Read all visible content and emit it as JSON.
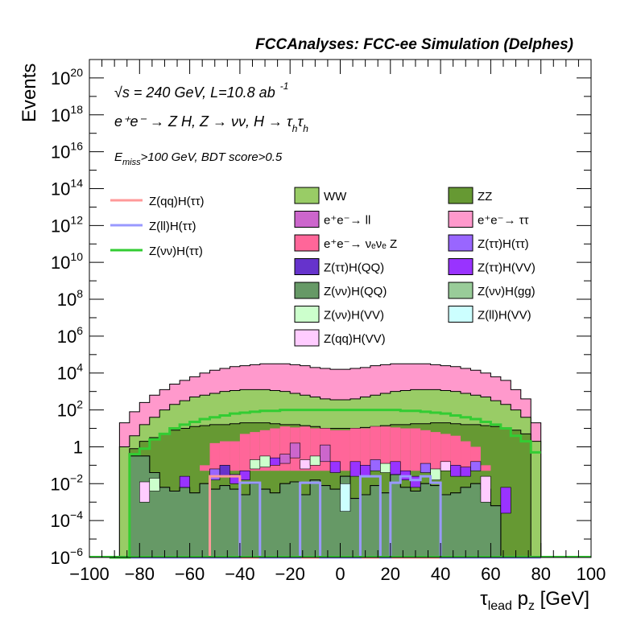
{
  "chart_data": {
    "type": "histogram",
    "title": "FCCAnalyses: FCC-ee Simulation (Delphes)",
    "xlabel_main": "τ",
    "xlabel_sub": "lead",
    "xlabel_rest": " p",
    "xlabel_sub2": "z",
    "xlabel_unit": " [GeV]",
    "ylabel": "Events",
    "y_scale": "log",
    "xlim": [
      -100,
      100
    ],
    "ylim_exp": [
      -6,
      21
    ],
    "x_ticks": [
      "−100",
      "−80",
      "−60",
      "−40",
      "−20",
      "0",
      "20",
      "40",
      "60",
      "80",
      "100"
    ],
    "x_tick_values": [
      -100,
      -80,
      -60,
      -40,
      -20,
      0,
      20,
      40,
      60,
      80,
      100
    ],
    "y_ticks": [
      {
        "exp": -6,
        "base": "10",
        "sup": "−6"
      },
      {
        "exp": -4,
        "base": "10",
        "sup": "−4"
      },
      {
        "exp": -2,
        "base": "10",
        "sup": "−2"
      },
      {
        "exp": 0,
        "base": "1",
        "sup": ""
      },
      {
        "exp": 2,
        "base": "10",
        "sup": "2"
      },
      {
        "exp": 4,
        "base": "10",
        "sup": "4"
      },
      {
        "exp": 6,
        "base": "10",
        "sup": "6"
      },
      {
        "exp": 8,
        "base": "10",
        "sup": "8"
      },
      {
        "exp": 10,
        "base": "10",
        "sup": "10"
      },
      {
        "exp": 12,
        "base": "10",
        "sup": "12"
      },
      {
        "exp": 14,
        "base": "10",
        "sup": "14"
      },
      {
        "exp": 16,
        "base": "10",
        "sup": "16"
      },
      {
        "exp": 18,
        "base": "10",
        "sup": "18"
      },
      {
        "exp": 20,
        "base": "10",
        "sup": "20"
      }
    ],
    "annotations": {
      "line1_sqrt": "√s",
      "line1_rest": " = 240 GeV, L=10.8 ab",
      "line1_sup": "-1",
      "line2": "e⁺e⁻ → Z H, Z → νν, H → τ",
      "line2_sub1": "h",
      "line2_tau2": "τ",
      "line2_sub2": "h",
      "line3_E": "E",
      "line3_sub": "miss",
      "line3_rest": ">100 GeV, BDT score>0.5"
    },
    "bin_edges": [
      -92,
      -88,
      -84,
      -80,
      -76,
      -72,
      -68,
      -64,
      -60,
      -56,
      -52,
      -48,
      -44,
      -40,
      -36,
      -32,
      -28,
      -24,
      -20,
      -16,
      -12,
      -8,
      -4,
      0,
      4,
      8,
      12,
      16,
      20,
      24,
      28,
      32,
      36,
      40,
      44,
      48,
      52,
      56,
      60,
      64,
      68,
      72,
      76,
      80
    ],
    "stack_log10": [
      {
        "name": "Z(νν)H(QQ)",
        "color": "#669966",
        "values": [
          -7,
          -7,
          -0.5,
          -0.5,
          -1.4,
          -2.2,
          -2.4,
          -2.2,
          -2.5,
          -2.0,
          -2.3,
          -2.1,
          -2.3,
          -2.6,
          -2.0,
          -2.3,
          -2.5,
          -2.0,
          -1.9,
          -2.6,
          -1.8,
          -2.1,
          -2.3,
          -1.6,
          -2.8,
          -2.6,
          -2.1,
          -2.5,
          -1.5,
          -2.2,
          -2.4,
          -2.0,
          -2.1,
          -2.6,
          -2.5,
          -2.2,
          -2.0,
          -2.3,
          -3.2,
          -7,
          -7,
          -7,
          -7
        ]
      },
      {
        "name": "ZZ",
        "color": "#669933",
        "values": [
          -7,
          -7,
          -0.1,
          0.3,
          0.5,
          0.7,
          0.9,
          1.0,
          1.1,
          1.15,
          1.2,
          1.2,
          1.25,
          1.3,
          1.3,
          1.3,
          1.25,
          1.2,
          1.2,
          1.15,
          1.1,
          1.0,
          1.0,
          1.0,
          1.0,
          1.05,
          1.1,
          1.15,
          1.2,
          1.2,
          1.25,
          1.25,
          1.3,
          1.3,
          1.25,
          1.2,
          1.2,
          1.15,
          1.1,
          1.0,
          0.9,
          0.7,
          -7
        ]
      },
      {
        "name": "WW",
        "color": "#99cc66",
        "values": [
          -7,
          0.0,
          0.6,
          1.2,
          1.6,
          2.0,
          2.3,
          2.5,
          2.7,
          2.8,
          2.9,
          3.0,
          3.05,
          3.1,
          3.1,
          3.1,
          3.05,
          3.0,
          2.9,
          2.8,
          2.7,
          2.6,
          2.55,
          2.55,
          2.6,
          2.7,
          2.8,
          2.9,
          3.0,
          3.05,
          3.1,
          3.1,
          3.1,
          3.05,
          3.0,
          2.9,
          2.8,
          2.7,
          2.5,
          2.3,
          2.0,
          1.6,
          0.3
        ]
      },
      {
        "name": "e⁺e⁻→ ττ",
        "color": "#ff99cc",
        "values": [
          -7,
          1.3,
          1.9,
          2.4,
          2.8,
          3.1,
          3.4,
          3.6,
          3.8,
          4.0,
          4.15,
          4.25,
          4.35,
          4.4,
          4.45,
          4.5,
          4.5,
          4.5,
          4.45,
          4.4,
          4.3,
          4.25,
          4.2,
          4.2,
          4.25,
          4.3,
          4.4,
          4.45,
          4.5,
          4.5,
          4.5,
          4.5,
          4.45,
          4.4,
          4.35,
          4.25,
          4.15,
          4.0,
          3.8,
          3.6,
          3.1,
          2.6,
          1.3
        ]
      }
    ],
    "ee_nunuZ": {
      "name": "e⁺e⁻→ ν_eν_e Z",
      "color": "#ff6699",
      "values": [
        -7,
        -7,
        -7,
        -7,
        -7,
        -7,
        -7,
        -7,
        -1.7,
        -1.0,
        0.2,
        0.3,
        0.3,
        0.7,
        0.8,
        0.9,
        1.0,
        1.1,
        1.05,
        1.1,
        1.0,
        1.0,
        0.9,
        0.9,
        1.0,
        1.0,
        1.1,
        1.1,
        1.05,
        1.0,
        1.0,
        0.9,
        0.8,
        0.7,
        0.6,
        0.3,
        0.0,
        -1.0,
        -7,
        -7,
        -7,
        -7,
        -7
      ]
    },
    "signal_lines": [
      {
        "name": "Z(qq)H(ττ)",
        "color": "#ff9999",
        "values": [
          -7,
          -7,
          -7,
          -7,
          -7,
          -7,
          -7,
          -7,
          -7,
          -7,
          -1.6,
          -1.6,
          -1.6,
          -7,
          -7,
          -7,
          -7,
          -7,
          -7,
          -7,
          -7,
          -7,
          -7,
          -7,
          -7,
          -7,
          -7,
          -7,
          -7,
          -7,
          -7,
          -7,
          -7,
          -7,
          -7,
          -7,
          -7,
          -7,
          -7,
          -7,
          -7,
          -7,
          -7
        ]
      },
      {
        "name": "Z(ll)H(ττ)",
        "color": "#9999ff",
        "values": [
          -7,
          -7,
          -7,
          -7,
          -7,
          -7,
          -7,
          -7,
          -7,
          -7,
          -7,
          -7,
          -7,
          -1.95,
          -1.95,
          -7,
          -7,
          -7,
          -7,
          -1.95,
          -1.95,
          -7,
          -7,
          -7,
          -7,
          -1.6,
          -1.6,
          -7,
          -1.95,
          -1.6,
          -1.8,
          -1.6,
          -1.95,
          -7,
          -7,
          -7,
          -7,
          -7,
          -7,
          -7,
          -7,
          -7,
          -7
        ]
      },
      {
        "name": "Z(νν)H(ττ)",
        "color": "#33cc33",
        "values": [
          -7,
          -7,
          -0.4,
          -0.1,
          0.4,
          0.7,
          1.0,
          1.2,
          1.35,
          1.5,
          1.6,
          1.7,
          1.8,
          1.85,
          1.9,
          1.95,
          1.95,
          2.0,
          2.0,
          2.0,
          2.0,
          2.0,
          2.0,
          2.0,
          2.0,
          2.0,
          2.0,
          2.0,
          2.0,
          1.95,
          1.95,
          1.9,
          1.85,
          1.8,
          1.7,
          1.6,
          1.5,
          1.35,
          1.2,
          1.0,
          0.6,
          0.3,
          -0.3
        ]
      }
    ],
    "minor_bars": [
      {
        "bin": 12,
        "lo": -2.0,
        "hi": -1.5,
        "color": "#9933ff"
      },
      {
        "bin": 13,
        "lo": -1.8,
        "hi": -1.3,
        "color": "#9933ff"
      },
      {
        "bin": 14,
        "lo": -1.2,
        "hi": -0.7,
        "color": "#ccffcc"
      },
      {
        "bin": 15,
        "lo": -1.1,
        "hi": -0.5,
        "color": "#ccffcc"
      },
      {
        "bin": 16,
        "lo": -1.0,
        "hi": -0.6,
        "color": "#9933ff"
      },
      {
        "bin": 17,
        "lo": -0.9,
        "hi": -0.4,
        "color": "#cc66cc"
      },
      {
        "bin": 18,
        "lo": -0.6,
        "hi": 0.2,
        "color": "#cc66cc"
      },
      {
        "bin": 19,
        "lo": -1.2,
        "hi": -0.7,
        "color": "#ffccff"
      },
      {
        "bin": 20,
        "lo": -1.0,
        "hi": -0.5,
        "color": "#ccffcc"
      },
      {
        "bin": 21,
        "lo": -0.8,
        "hi": 0.1,
        "color": "#cc66cc"
      },
      {
        "bin": 22,
        "lo": -1.4,
        "hi": -0.8,
        "color": "#9933ff"
      },
      {
        "bin": 23,
        "lo": -3.5,
        "hi": -2.0,
        "color": "#ccffff"
      },
      {
        "bin": 24,
        "lo": -1.6,
        "hi": -0.8,
        "color": "#9933ff"
      },
      {
        "bin": 25,
        "lo": -1.6,
        "hi": -1.0,
        "color": "#9933ff"
      },
      {
        "bin": 26,
        "lo": -1.3,
        "hi": -0.7,
        "color": "#9966ff"
      },
      {
        "bin": 27,
        "lo": -1.4,
        "hi": -0.9,
        "color": "#ccffcc"
      },
      {
        "bin": 28,
        "lo": -1.5,
        "hi": -0.8,
        "color": "#9933ff"
      },
      {
        "bin": 29,
        "lo": -1.8,
        "hi": -1.3,
        "color": "#9933ff"
      },
      {
        "bin": 30,
        "lo": -2.2,
        "hi": -1.6,
        "color": "#9933ff"
      },
      {
        "bin": 31,
        "lo": -1.4,
        "hi": -0.9,
        "color": "#9966ff"
      },
      {
        "bin": 32,
        "lo": -1.8,
        "hi": -1.2,
        "color": "#ccffcc"
      },
      {
        "bin": 33,
        "lo": -1.3,
        "hi": -0.8,
        "color": "#ffccff"
      },
      {
        "bin": 34,
        "lo": -1.6,
        "hi": -1.0,
        "color": "#9933ff"
      },
      {
        "bin": 35,
        "lo": -1.6,
        "hi": -1.1,
        "color": "#9933ff"
      },
      {
        "bin": 36,
        "lo": -1.3,
        "hi": -0.8,
        "color": "#9966ff"
      },
      {
        "bin": 37,
        "lo": -3.0,
        "hi": -1.6,
        "color": "#ffccff"
      },
      {
        "bin": 39,
        "lo": -3.6,
        "hi": -2.2,
        "color": "#9933ff"
      },
      {
        "bin": 3,
        "lo": -3.0,
        "hi": -1.9,
        "color": "#ffccff"
      },
      {
        "bin": 4,
        "lo": -2.4,
        "hi": -1.7,
        "color": "#ccffcc"
      },
      {
        "bin": 7,
        "lo": -2.2,
        "hi": -1.6,
        "color": "#9933ff"
      },
      {
        "bin": 10,
        "lo": -1.8,
        "hi": -1.2,
        "color": "#9966ff"
      },
      {
        "bin": 11,
        "lo": -1.6,
        "hi": -1.0,
        "color": "#6633cc"
      }
    ],
    "legend_left": [
      {
        "label": "Z(qq)H(ττ)",
        "color": "#ff9999"
      },
      {
        "label": "Z(ll)H(ττ)",
        "color": "#9999ff"
      },
      {
        "label": "Z(νν)H(ττ)",
        "color": "#33cc33"
      }
    ],
    "legend_boxes": [
      {
        "label": "WW",
        "color": "#99cc66",
        "col": 0
      },
      {
        "label": "ZZ",
        "color": "#669933",
        "col": 1
      },
      {
        "label": "e⁺e⁻→ ll",
        "color": "#cc66cc",
        "col": 0
      },
      {
        "label": "e⁺e⁻→ ττ",
        "color": "#ff99cc",
        "col": 1
      },
      {
        "label": "e⁺e⁻→ νₑνₑ Z",
        "color": "#ff6699",
        "col": 0
      },
      {
        "label": "Z(ττ)H(ττ)",
        "color": "#9966ff",
        "col": 1
      },
      {
        "label": "Z(ττ)H(QQ)",
        "color": "#6633cc",
        "col": 0
      },
      {
        "label": "Z(ττ)H(VV)",
        "color": "#9933ff",
        "col": 1
      },
      {
        "label": "Z(νν)H(QQ)",
        "color": "#669966",
        "col": 0
      },
      {
        "label": "Z(νν)H(gg)",
        "color": "#99cc99",
        "col": 1
      },
      {
        "label": "Z(νν)H(VV)",
        "color": "#ccffcc",
        "col": 0
      },
      {
        "label": "Z(ll)H(VV)",
        "color": "#ccffff",
        "col": 1
      },
      {
        "label": "Z(qq)H(VV)",
        "color": "#ffccff",
        "col": 0
      }
    ]
  }
}
